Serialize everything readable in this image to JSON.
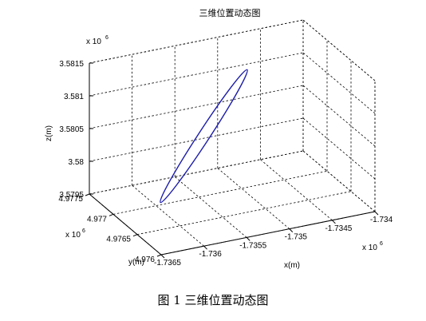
{
  "figure": {
    "caption": "图 1 三维位置动态图"
  },
  "chart_data": {
    "type": "line",
    "title": "三维位置动态图",
    "xlabel": "x(m)",
    "ylabel": "y(m)",
    "zlabel": "z(m)",
    "x_exponent_label": "x 10",
    "y_exponent_label": "x 10",
    "z_exponent_label": "x 10",
    "exponent_power": "6",
    "xlim": [
      -1.7365,
      -1.734
    ],
    "ylim": [
      4.976,
      4.9775
    ],
    "zlim": [
      3.5795,
      3.5815
    ],
    "x_ticks": [
      "-1.7365",
      "-1.736",
      "-1.7355",
      "-1.735",
      "-1.7345",
      "-1.734"
    ],
    "y_ticks": [
      "4.976",
      "4.9765",
      "4.977",
      "4.9775"
    ],
    "z_ticks": [
      "3.5795",
      "3.58",
      "3.5805",
      "3.581",
      "3.5815"
    ],
    "grid": true,
    "series": [
      {
        "color": "#1c1caa",
        "shape": "closed-ellipse",
        "endpoints": [
          {
            "x": -1.7362,
            "y": 4.97655,
            "z": 3.57988
          },
          {
            "x": -1.73485,
            "y": 4.97715,
            "z": 3.58118
          }
        ]
      }
    ]
  }
}
